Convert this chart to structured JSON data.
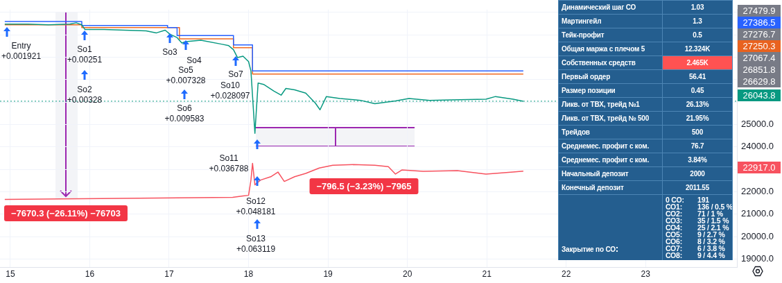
{
  "chart_data": [
    {
      "type": "line",
      "xlim": [
        14.87,
        24.15
      ],
      "xticks": [
        15,
        16,
        17,
        18,
        19,
        20,
        21,
        22,
        23
      ],
      "ylim": [
        18640,
        30130
      ],
      "yticks": [
        {
          "value": 19000,
          "label": "19000.0"
        },
        {
          "value": 20000,
          "label": "20000.0"
        },
        {
          "value": 21000,
          "label": "21000.0"
        },
        {
          "value": 22000,
          "label": "22000.0"
        },
        {
          "value": 23000,
          "label": null
        },
        {
          "value": 24000,
          "label": "24000.0"
        },
        {
          "value": 25000,
          "label": "25000.0"
        },
        {
          "value": 26000,
          "label": null
        },
        {
          "value": 27000,
          "label": null
        },
        {
          "value": 28000,
          "label": null
        },
        {
          "value": 29000,
          "label": null
        },
        {
          "value": 30000,
          "label": null
        }
      ],
      "grid": true,
      "legend": false,
      "marker": "none",
      "series": [
        {
          "type": "line",
          "color": "#089981",
          "x": [
            14.93,
            15.22,
            15.48,
            15.75,
            15.83,
            15.9,
            15.94,
            16.18,
            16.44,
            16.71,
            16.84,
            16.95,
            17.01,
            17.1,
            17.16,
            17.21,
            17.4,
            17.67,
            17.75,
            17.81,
            17.86,
            17.93,
            18.0,
            18.03,
            18.08,
            18.12,
            18.19,
            18.32,
            18.41,
            18.47,
            18.58,
            18.72,
            18.84,
            18.9,
            18.98,
            19.15,
            19.41,
            19.59,
            19.85,
            20.02,
            20.28,
            20.55,
            20.99,
            21.11,
            21.33,
            21.46
          ],
          "values": [
            29480,
            29480,
            29450,
            29480,
            29540,
            29450,
            29240,
            29240,
            29210,
            29180,
            29090,
            29210,
            29030,
            28880,
            28640,
            28700,
            28760,
            28580,
            28520,
            28340,
            27990,
            28050,
            27810,
            27390,
            24610,
            26850,
            26790,
            26490,
            26310,
            26610,
            26550,
            26400,
            25960,
            25660,
            26250,
            26160,
            26080,
            25930,
            26050,
            26160,
            26080,
            26100,
            26130,
            26250,
            26130,
            26040
          ]
        },
        {
          "type": "step",
          "color": "#2962ff",
          "x": [
            14.93,
            15.9,
            16.98,
            17.1,
            17.81,
            18.05,
            21.46
          ],
          "values": [
            29600,
            29420,
            29330,
            28970,
            28550,
            27390,
            27390
          ]
        },
        {
          "type": "step",
          "color": "#f06a22",
          "x": [
            14.93,
            15.9,
            17.13,
            17.81,
            18.05,
            21.46
          ],
          "values": [
            29450,
            29330,
            28820,
            28430,
            27250,
            27250
          ]
        },
        {
          "type": "line",
          "color": "#f7525f",
          "x": [
            14.93,
            17.8,
            17.93,
            18.0,
            18.03,
            18.05,
            18.08,
            18.15,
            18.28,
            18.37,
            18.45,
            18.58,
            18.72,
            18.89,
            19.06,
            19.32,
            19.59,
            19.76,
            19.85,
            19.93,
            20.2,
            20.63,
            20.99,
            21.33,
            21.46
          ],
          "values": [
            21660,
            21750,
            21810,
            21840,
            22520,
            23270,
            22310,
            22520,
            22670,
            22880,
            22460,
            22670,
            22820,
            23060,
            23180,
            23210,
            23180,
            23120,
            22790,
            22970,
            22910,
            22940,
            22790,
            22880,
            22920
          ]
        }
      ],
      "ref_lines": [
        {
          "axis": "y",
          "value": 26040,
          "color": "#089981",
          "line_style": "dotted"
        }
      ],
      "annotations": [
        "−7670.3 (−26.11%) −76703",
        "−796.5 (−3.23%) −7965",
        "Entry\n+0.001921",
        "So1\n+0.00251",
        "So2\n+0.00328",
        "So3",
        "So4",
        "So5\n+0.007328",
        "So6\n+0.009583",
        "So7",
        "So10\n+0.028097",
        "So11\n+0.036788",
        "So12\n+0.048181",
        "So13\n+0.063119",
        "27479.9",
        "27386.5",
        "27276.7",
        "27250.3",
        "27067.4",
        "26851.8",
        "26629.8",
        "26043.8",
        "22917.0"
      ]
    },
    {
      "type": "other",
      "categories": [
        "Динамический шаг СО",
        "Мартингейл",
        "Тейк-профит",
        "Общая маржа с плечом 5",
        "Собственных средств",
        "Первый ордер",
        "Размер позиции",
        "Ликв. от ТВХ, трейд №1",
        "Ликв. от ТВХ, трейд № 500",
        "Трейдов",
        "Среднемес. профит с ком.",
        "Среднемес. профит с ком.",
        "Начальный депозит",
        "Конечный депозит",
        "Закрытие по СО"
      ],
      "value_labels": [
        "1.03",
        "1.3",
        "0.5",
        "12.324K",
        "2.465K",
        "56.41",
        "0.45",
        "26.13%",
        "21.95%",
        "500",
        "76.7",
        "3.84%",
        "2000",
        "2011.55",
        "0 СО:\t191\nСО1:\t136 / 0.5 %\nСО2:\t71 / 1 %\nСО3:\t35 / 1.5 %\nСО4:\t25 / 2.1 %\nСО5:\t9 / 2.7 %\nСО6:\t8 / 3.2 %\nСО7:\t6 / 3.8 %\nСО8:\t9 / 4.4 %"
      ],
      "colors": [
        null,
        null,
        null,
        null,
        "#ff5252",
        null,
        null,
        null,
        null,
        null,
        null,
        null,
        null,
        null,
        null
      ]
    }
  ]
}
